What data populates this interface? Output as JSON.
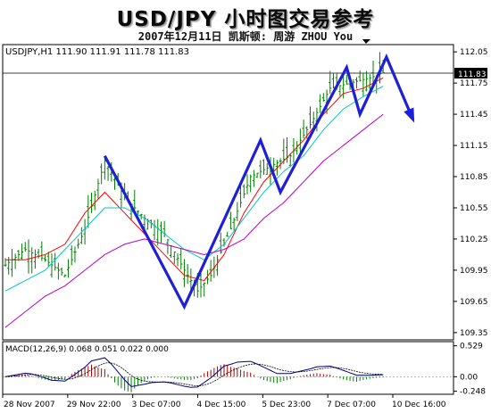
{
  "title": "USD/JPY 小时图交易参考",
  "subtitle": "2007年12月11日  凯斯顿: 周游 ZHOU You",
  "chart_data": {
    "type": "candlestick",
    "symbol_header": "USDJPY,H1  111.90 111.91 111.78 111.83",
    "current_price": "111.83",
    "price_axis": {
      "ticks": [
        "112.05",
        "111.75",
        "111.45",
        "111.15",
        "110.85",
        "110.55",
        "110.25",
        "109.95",
        "109.65",
        "109.35"
      ],
      "range": [
        109.28,
        112.12
      ]
    },
    "time_axis": {
      "ticks": [
        "28 Nov 2007",
        "29 Nov 22:00",
        "3 Dec 07:00",
        "4 Dec 15:00",
        "5 Dec 23:00",
        "7 Dec 07:00",
        "10 Dec 16:00"
      ]
    },
    "price_approx": [
      {
        "t": 0,
        "p": 110.0
      },
      {
        "t": 6,
        "p": 110.15
      },
      {
        "t": 12,
        "p": 110.05
      },
      {
        "t": 18,
        "p": 109.9
      },
      {
        "t": 24,
        "p": 110.35
      },
      {
        "t": 30,
        "p": 111.0
      },
      {
        "t": 36,
        "p": 110.65
      },
      {
        "t": 42,
        "p": 110.45
      },
      {
        "t": 48,
        "p": 110.3
      },
      {
        "t": 54,
        "p": 109.95
      },
      {
        "t": 58,
        "p": 109.75
      },
      {
        "t": 62,
        "p": 109.9
      },
      {
        "t": 68,
        "p": 110.35
      },
      {
        "t": 74,
        "p": 110.85
      },
      {
        "t": 80,
        "p": 110.95
      },
      {
        "t": 86,
        "p": 111.05
      },
      {
        "t": 92,
        "p": 111.35
      },
      {
        "t": 98,
        "p": 111.7
      },
      {
        "t": 104,
        "p": 111.75
      },
      {
        "t": 110,
        "p": 111.8
      },
      {
        "t": 114,
        "p": 111.85
      }
    ],
    "moving_averages": [
      {
        "color": "#ff0000",
        "values": [
          110.05,
          110.05,
          110.1,
          110.2,
          110.5,
          110.7,
          110.5,
          110.3,
          110.1,
          109.9,
          109.85,
          110.1,
          110.5,
          110.8,
          111.0,
          111.2,
          111.45,
          111.65,
          111.7,
          111.8
        ]
      },
      {
        "color": "#00c8c8",
        "values": [
          109.75,
          109.85,
          109.95,
          110.15,
          110.35,
          110.55,
          110.55,
          110.45,
          110.3,
          110.15,
          110.05,
          110.2,
          110.45,
          110.7,
          110.9,
          111.05,
          111.3,
          111.5,
          111.62,
          111.72
        ]
      },
      {
        "color": "#c000c0",
        "values": [
          109.4,
          109.55,
          109.7,
          109.8,
          109.95,
          110.1,
          110.2,
          110.25,
          110.2,
          110.15,
          110.1,
          110.15,
          110.25,
          110.45,
          110.6,
          110.8,
          111.0,
          111.15,
          111.3,
          111.45
        ]
      }
    ],
    "zigzag": {
      "color": "#1f1fd8",
      "points": [
        {
          "t": 30,
          "p": 111.05
        },
        {
          "t": 54,
          "p": 109.6
        },
        {
          "t": 77,
          "p": 111.2
        },
        {
          "t": 83,
          "p": 110.7
        },
        {
          "t": 103,
          "p": 111.9
        },
        {
          "t": 107,
          "p": 111.45
        },
        {
          "t": 115,
          "p": 112.0
        },
        {
          "t": 123,
          "p": 111.4
        }
      ]
    },
    "macd": {
      "header": "MACD(12,26,9) 0.068 0.051 0.022 0.000",
      "ticks": [
        "0.529",
        "0.00",
        "-0.248"
      ],
      "range": [
        -0.3,
        0.6
      ]
    }
  }
}
